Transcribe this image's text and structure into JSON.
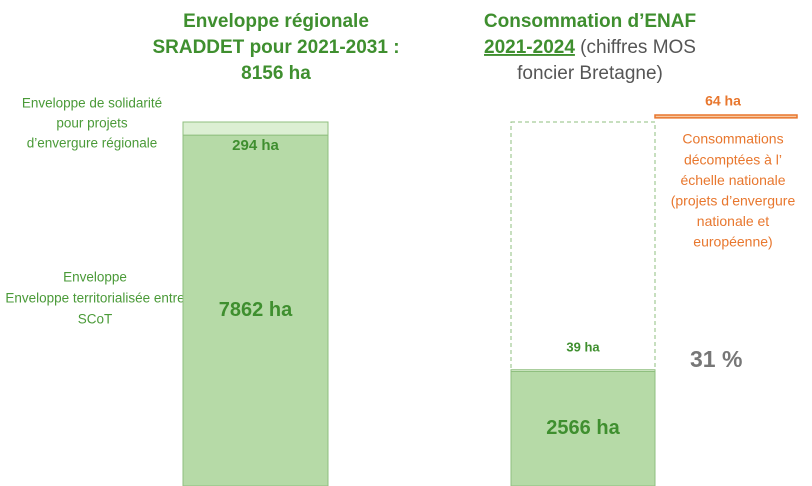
{
  "chart_data": {
    "type": "stacked_bar",
    "ylim": [
      0,
      8156
    ],
    "panels": [
      {
        "title_lines": [
          "Enveloppe régionale",
          "SRADDET pour 2021-2031 :",
          "8156 ha"
        ],
        "series": [
          {
            "name_lines": [
              "Enveloppe territorialisée entre",
              "SCoT"
            ],
            "name_head": "Enveloppe",
            "value": 7862,
            "value_label": "7862 ha",
            "color": "#b6daa7"
          },
          {
            "name_lines": [
              "pour projets",
              "d’envergure régionale"
            ],
            "name_head": "Enveloppe de solidarité",
            "value": 294,
            "value_label": "294 ha",
            "color": "#dcefd3"
          }
        ]
      },
      {
        "title_lines": [
          "Consommation d’ENAF",
          "2021-2024",
          " (chiffres MOS",
          "foncier Bretagne)"
        ],
        "series": [
          {
            "value": 2566,
            "value_label": "2566 ha",
            "color": "#b6daa7"
          },
          {
            "value": 39,
            "value_label": "39 ha",
            "color": "#dcefd3"
          }
        ],
        "envelope": 8156,
        "share_label": "31 %",
        "national": {
          "value": 64,
          "value_label": "64 ha",
          "color": "#f6c9a3",
          "note_lines": [
            "Consommations",
            "décomptées à l’",
            "échelle nationale",
            "(projets d’envergure",
            "nationale et",
            "européenne)"
          ]
        }
      }
    ]
  }
}
